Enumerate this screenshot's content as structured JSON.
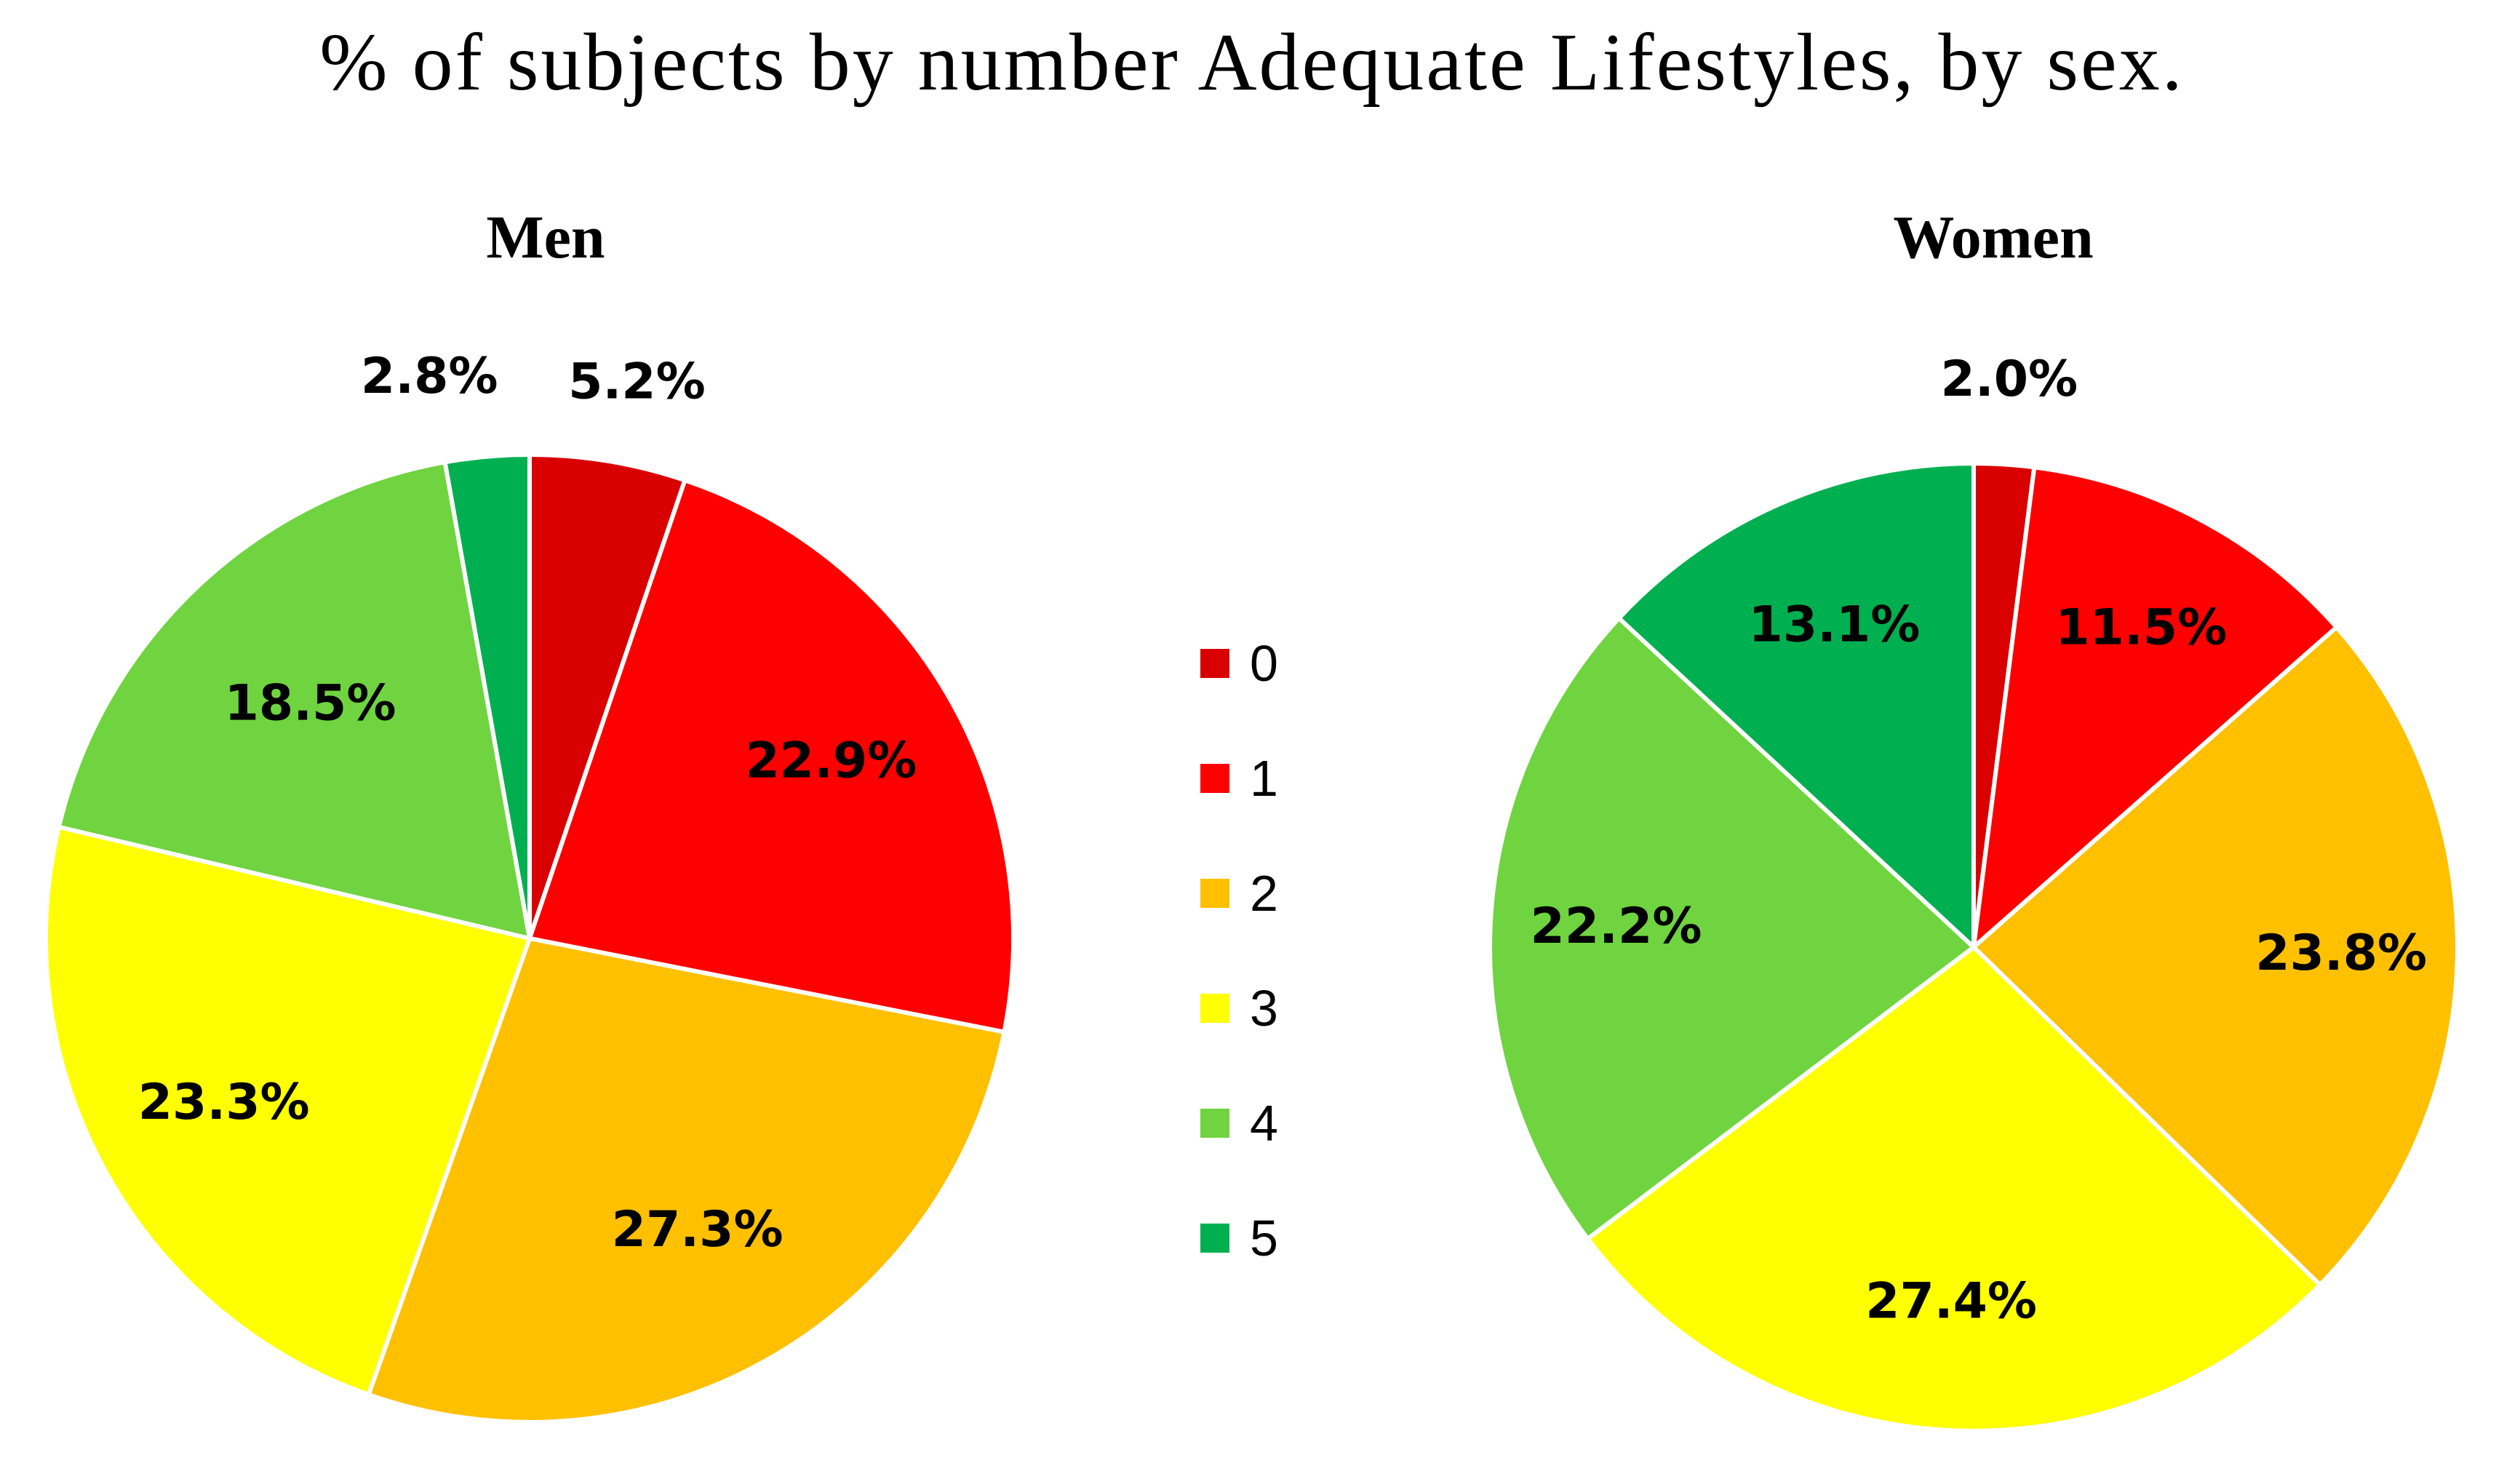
{
  "title": "% of subjects by number Adequate Lifestyles, by sex.",
  "legend": [
    {
      "label": "0",
      "color": "#d90000"
    },
    {
      "label": "1",
      "color": "#ff0000"
    },
    {
      "label": "2",
      "color": "#ffc000"
    },
    {
      "label": "3",
      "color": "#ffff00"
    },
    {
      "label": "4",
      "color": "#6fd43f"
    },
    {
      "label": "5",
      "color": "#00b050"
    }
  ],
  "chart_data": [
    {
      "type": "pie",
      "title": "Men",
      "categories": [
        "0",
        "1",
        "2",
        "3",
        "4",
        "5"
      ],
      "values": [
        5.2,
        22.9,
        27.3,
        23.3,
        18.5,
        2.8
      ],
      "labels": [
        "5.2%",
        "22.9%",
        "27.3%",
        "23.3%",
        "18.5%",
        "2.8%"
      ]
    },
    {
      "type": "pie",
      "title": "Women",
      "categories": [
        "0",
        "1",
        "2",
        "3",
        "4",
        "5"
      ],
      "values": [
        2.0,
        11.5,
        23.8,
        27.4,
        22.2,
        13.1
      ],
      "labels": [
        "2.0%",
        "11.5%",
        "23.8%",
        "27.4%",
        "22.2%",
        "13.1%"
      ]
    }
  ]
}
